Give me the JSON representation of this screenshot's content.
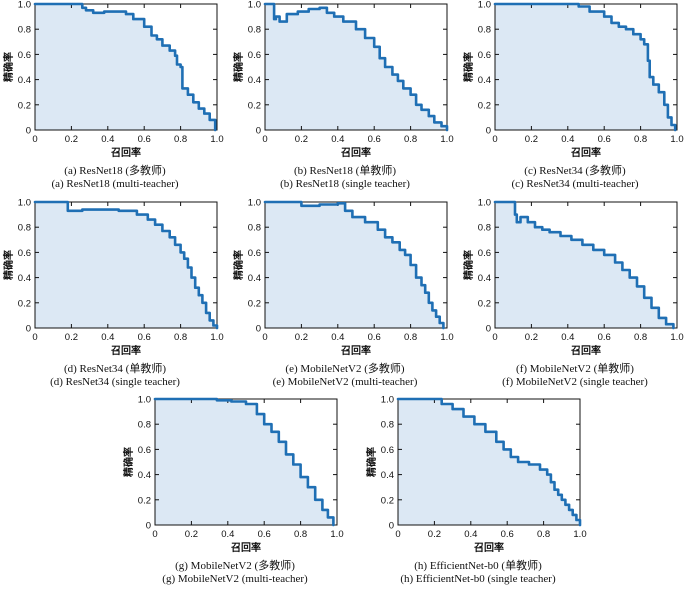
{
  "figure": {
    "panels": [
      {
        "caption_cn": "(a) ResNet18 (多教师)",
        "caption_en": "(a) ResNet18 (multi-teacher)"
      },
      {
        "caption_cn": "(b) ResNet18 (单教师)",
        "caption_en": "(b) ResNet18 (single teacher)"
      },
      {
        "caption_cn": "(c) ResNet34 (多教师)",
        "caption_en": "(c) ResNet34 (multi-teacher)"
      },
      {
        "caption_cn": "(d) ResNet34 (单教师)",
        "caption_en": "(d) ResNet34 (single teacher)"
      },
      {
        "caption_cn": "(e) MobileNetV2 (多教师)",
        "caption_en": "(e) MobileNetV2 (multi-teacher)"
      },
      {
        "caption_cn": "(f) MobileNetV2 (单教师)",
        "caption_en": "(f) MobileNetV2 (single teacher)"
      },
      {
        "caption_cn": "(g) MobileNetV2 (多教师)",
        "caption_en": "(g) MobileNetV2 (multi-teacher)"
      },
      {
        "caption_cn": "(h) EfficientNet-b0 (单教师)",
        "caption_en": "(h) EfficientNet-b0 (single teacher)"
      }
    ]
  },
  "chart_data": [
    {
      "type": "area",
      "xlabel": "召回率",
      "ylabel": "精确率",
      "xlim": [
        0,
        1
      ],
      "ylim": [
        0,
        1
      ],
      "xticks": [
        "0",
        "0.2",
        "0.4",
        "0.6",
        "0.8",
        "1.0"
      ],
      "yticks": [
        "0",
        "0.2",
        "0.4",
        "0.6",
        "0.8",
        "1.0"
      ],
      "line_color": "#1f6fb4",
      "fill_color": "#dce8f4",
      "x": [
        0.0,
        0.24,
        0.26,
        0.28,
        0.32,
        0.38,
        0.5,
        0.54,
        0.6,
        0.64,
        0.67,
        0.7,
        0.74,
        0.77,
        0.78,
        0.8,
        0.81,
        0.84,
        0.87,
        0.9,
        0.93,
        0.96,
        0.99
      ],
      "y": [
        1.0,
        1.0,
        0.97,
        0.95,
        0.93,
        0.94,
        0.92,
        0.88,
        0.82,
        0.75,
        0.72,
        0.67,
        0.63,
        0.59,
        0.52,
        0.5,
        0.33,
        0.28,
        0.22,
        0.17,
        0.13,
        0.08,
        0.0
      ]
    },
    {
      "type": "area",
      "xlabel": "召回率",
      "ylabel": "精确率",
      "xlim": [
        0,
        1
      ],
      "ylim": [
        0,
        1
      ],
      "xticks": [
        "0",
        "0.2",
        "0.4",
        "0.6",
        "0.8",
        "1.0"
      ],
      "yticks": [
        "0",
        "0.2",
        "0.4",
        "0.6",
        "0.8",
        "1.0"
      ],
      "line_color": "#1f6fb4",
      "fill_color": "#dce8f4",
      "x": [
        0.0,
        0.04,
        0.05,
        0.06,
        0.08,
        0.12,
        0.18,
        0.24,
        0.3,
        0.34,
        0.38,
        0.43,
        0.5,
        0.55,
        0.6,
        0.63,
        0.66,
        0.7,
        0.73,
        0.76,
        0.8,
        0.83,
        0.86,
        0.9,
        0.93,
        0.97,
        1.0
      ],
      "y": [
        1.0,
        1.0,
        0.88,
        0.9,
        0.86,
        0.92,
        0.94,
        0.96,
        0.97,
        0.93,
        0.9,
        0.86,
        0.8,
        0.73,
        0.66,
        0.57,
        0.5,
        0.44,
        0.39,
        0.33,
        0.28,
        0.2,
        0.16,
        0.11,
        0.06,
        0.03,
        0.0
      ]
    },
    {
      "type": "area",
      "xlabel": "召回率",
      "ylabel": "精确率",
      "xlim": [
        0,
        1
      ],
      "ylim": [
        0,
        1
      ],
      "xticks": [
        "0",
        "0.2",
        "0.4",
        "0.6",
        "0.8",
        "1.0"
      ],
      "yticks": [
        "0",
        "0.2",
        "0.4",
        "0.6",
        "0.8",
        "1.0"
      ],
      "line_color": "#1f6fb4",
      "fill_color": "#dce8f4",
      "x": [
        0.0,
        0.42,
        0.46,
        0.52,
        0.6,
        0.64,
        0.68,
        0.72,
        0.76,
        0.8,
        0.82,
        0.84,
        0.85,
        0.87,
        0.9,
        0.93,
        0.95,
        0.97,
        0.99
      ],
      "y": [
        1.0,
        1.0,
        0.98,
        0.94,
        0.9,
        0.85,
        0.82,
        0.8,
        0.76,
        0.72,
        0.68,
        0.55,
        0.42,
        0.36,
        0.3,
        0.2,
        0.1,
        0.04,
        0.0
      ]
    },
    {
      "type": "area",
      "xlabel": "召回率",
      "ylabel": "精确率",
      "xlim": [
        0,
        1
      ],
      "ylim": [
        0,
        1
      ],
      "xticks": [
        "0",
        "0.2",
        "0.4",
        "0.6",
        "0.8",
        "1.0"
      ],
      "yticks": [
        "0",
        "0.2",
        "0.4",
        "0.6",
        "0.8",
        "1.0"
      ],
      "line_color": "#1f6fb4",
      "fill_color": "#dce8f4",
      "x": [
        0.0,
        0.16,
        0.18,
        0.26,
        0.36,
        0.46,
        0.56,
        0.62,
        0.66,
        0.7,
        0.74,
        0.77,
        0.8,
        0.82,
        0.84,
        0.86,
        0.88,
        0.9,
        0.92,
        0.94,
        0.96,
        0.98,
        1.0
      ],
      "y": [
        1.0,
        1.0,
        0.93,
        0.94,
        0.94,
        0.93,
        0.9,
        0.86,
        0.82,
        0.77,
        0.72,
        0.66,
        0.6,
        0.55,
        0.48,
        0.4,
        0.32,
        0.26,
        0.2,
        0.12,
        0.06,
        0.02,
        0.0
      ]
    },
    {
      "type": "area",
      "xlabel": "召回率",
      "ylabel": "精确率",
      "xlim": [
        0,
        1
      ],
      "ylim": [
        0,
        1
      ],
      "xticks": [
        "0",
        "0.2",
        "0.4",
        "0.6",
        "0.8",
        "1.0"
      ],
      "yticks": [
        "0",
        "0.2",
        "0.4",
        "0.6",
        "0.8",
        "1.0"
      ],
      "line_color": "#1f6fb4",
      "fill_color": "#dce8f4",
      "x": [
        0.0,
        0.18,
        0.2,
        0.3,
        0.4,
        0.44,
        0.48,
        0.55,
        0.62,
        0.66,
        0.7,
        0.74,
        0.77,
        0.8,
        0.83,
        0.86,
        0.88,
        0.9,
        0.92,
        0.94,
        0.96,
        0.98
      ],
      "y": [
        1.0,
        1.0,
        0.97,
        0.98,
        0.99,
        0.93,
        0.88,
        0.84,
        0.78,
        0.72,
        0.68,
        0.62,
        0.58,
        0.5,
        0.4,
        0.34,
        0.28,
        0.2,
        0.14,
        0.09,
        0.04,
        0.0
      ]
    },
    {
      "type": "area",
      "xlabel": "召回率",
      "ylabel": "精确率",
      "xlim": [
        0,
        1
      ],
      "ylim": [
        0,
        1
      ],
      "xticks": [
        "0",
        "0.2",
        "0.4",
        "0.6",
        "0.8",
        "1.0"
      ],
      "yticks": [
        "0",
        "0.2",
        "0.4",
        "0.6",
        "0.8",
        "1.0"
      ],
      "line_color": "#1f6fb4",
      "fill_color": "#dce8f4",
      "x": [
        0.0,
        0.1,
        0.11,
        0.12,
        0.14,
        0.18,
        0.22,
        0.26,
        0.3,
        0.36,
        0.42,
        0.48,
        0.54,
        0.6,
        0.66,
        0.7,
        0.74,
        0.78,
        0.82,
        0.86,
        0.9,
        0.94,
        0.98
      ],
      "y": [
        1.0,
        1.0,
        0.9,
        0.84,
        0.88,
        0.84,
        0.8,
        0.78,
        0.76,
        0.73,
        0.7,
        0.66,
        0.62,
        0.58,
        0.52,
        0.46,
        0.4,
        0.33,
        0.24,
        0.16,
        0.08,
        0.03,
        0.0
      ]
    },
    {
      "type": "area",
      "xlabel": "召回率",
      "ylabel": "精确率",
      "xlim": [
        0,
        1
      ],
      "ylim": [
        0,
        1
      ],
      "xticks": [
        "0",
        "0.2",
        "0.4",
        "0.6",
        "0.8",
        "1.0"
      ],
      "yticks": [
        "0",
        "0.2",
        "0.4",
        "0.6",
        "0.8",
        "1.0"
      ],
      "line_color": "#1f6fb4",
      "fill_color": "#dce8f4",
      "x": [
        0.0,
        0.3,
        0.34,
        0.42,
        0.5,
        0.56,
        0.6,
        0.64,
        0.68,
        0.72,
        0.76,
        0.8,
        0.84,
        0.88,
        0.92,
        0.95,
        0.98
      ],
      "y": [
        1.0,
        1.0,
        0.99,
        0.98,
        0.96,
        0.88,
        0.8,
        0.74,
        0.66,
        0.56,
        0.48,
        0.38,
        0.3,
        0.2,
        0.12,
        0.06,
        0.0
      ]
    },
    {
      "type": "area",
      "xlabel": "召回率",
      "ylabel": "精确率",
      "xlim": [
        0,
        1
      ],
      "ylim": [
        0,
        1
      ],
      "xticks": [
        "0",
        "0.2",
        "0.4",
        "0.6",
        "0.8",
        "1.0"
      ],
      "yticks": [
        "0",
        "0.2",
        "0.4",
        "0.6",
        "0.8",
        "1.0"
      ],
      "line_color": "#1f6fb4",
      "fill_color": "#dce8f4",
      "x": [
        0.0,
        0.2,
        0.24,
        0.3,
        0.36,
        0.42,
        0.48,
        0.54,
        0.58,
        0.62,
        0.66,
        0.72,
        0.78,
        0.82,
        0.84,
        0.86,
        0.88,
        0.9,
        0.92,
        0.94,
        0.96,
        0.98,
        1.0
      ],
      "y": [
        1.0,
        1.0,
        0.96,
        0.92,
        0.86,
        0.8,
        0.74,
        0.66,
        0.6,
        0.54,
        0.5,
        0.48,
        0.44,
        0.4,
        0.34,
        0.28,
        0.24,
        0.2,
        0.16,
        0.12,
        0.08,
        0.04,
        0.0
      ]
    }
  ]
}
